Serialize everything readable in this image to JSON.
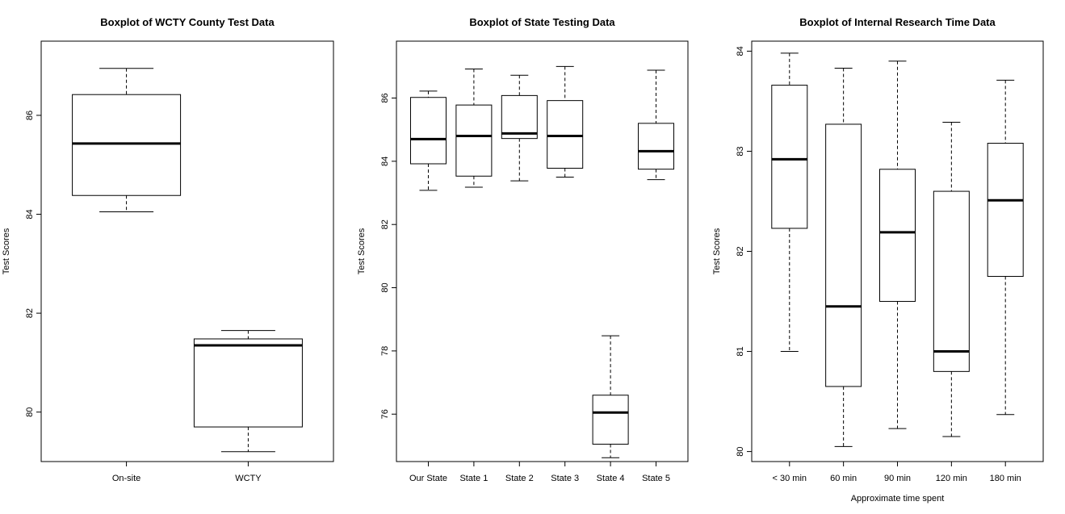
{
  "chart_data": [
    {
      "type": "boxplot",
      "title": "Boxplot of WCTY County Test Data",
      "xlabel": "",
      "ylabel": "Test Scores",
      "ylim": [
        79.0,
        87.5
      ],
      "yticks": [
        80,
        82,
        84,
        86
      ],
      "categories": [
        "On-site",
        "WCTY"
      ],
      "boxes": [
        {
          "min": 84.05,
          "q1": 84.38,
          "median": 85.43,
          "q3": 86.42,
          "max": 86.95
        },
        {
          "min": 79.2,
          "q1": 79.7,
          "median": 81.35,
          "q3": 81.48,
          "max": 81.65
        }
      ]
    },
    {
      "type": "boxplot",
      "title": "Boxplot of State Testing Data",
      "xlabel": "",
      "ylabel": "Test Scores",
      "ylim": [
        74.5,
        87.8
      ],
      "yticks": [
        76,
        78,
        80,
        82,
        84,
        86
      ],
      "categories": [
        "Our State",
        "State 1",
        "State 2",
        "State 3",
        "State 4",
        "State 5"
      ],
      "boxes": [
        {
          "min": 83.08,
          "q1": 83.92,
          "median": 84.7,
          "q3": 86.02,
          "max": 86.22
        },
        {
          "min": 83.18,
          "q1": 83.53,
          "median": 84.8,
          "q3": 85.78,
          "max": 86.92
        },
        {
          "min": 83.38,
          "q1": 84.72,
          "median": 84.88,
          "q3": 86.08,
          "max": 86.72
        },
        {
          "min": 83.5,
          "q1": 83.78,
          "median": 84.8,
          "q3": 85.92,
          "max": 87.0
        },
        {
          "min": 74.62,
          "q1": 75.05,
          "median": 76.05,
          "q3": 76.6,
          "max": 78.48
        },
        {
          "min": 83.42,
          "q1": 83.75,
          "median": 84.32,
          "q3": 85.2,
          "max": 86.88
        }
      ]
    },
    {
      "type": "boxplot",
      "title": "Boxplot of Internal Research Time Data",
      "xlabel": "Approximate time spent",
      "ylabel": "Test Scores",
      "ylim": [
        79.9,
        84.1
      ],
      "yticks": [
        80,
        81,
        82,
        83,
        84
      ],
      "categories": [
        "< 30 min",
        "60 min",
        "90 min",
        "120 min",
        "180 min"
      ],
      "boxes": [
        {
          "min": 81.0,
          "q1": 82.23,
          "median": 82.92,
          "q3": 83.66,
          "max": 83.98
        },
        {
          "min": 80.05,
          "q1": 80.65,
          "median": 81.45,
          "q3": 83.27,
          "max": 83.83
        },
        {
          "min": 80.23,
          "q1": 81.5,
          "median": 82.19,
          "q3": 82.82,
          "max": 83.9
        },
        {
          "min": 80.15,
          "q1": 80.8,
          "median": 81.0,
          "q3": 82.6,
          "max": 83.29
        },
        {
          "min": 80.37,
          "q1": 81.75,
          "median": 82.51,
          "q3": 83.08,
          "max": 83.71
        }
      ]
    }
  ]
}
